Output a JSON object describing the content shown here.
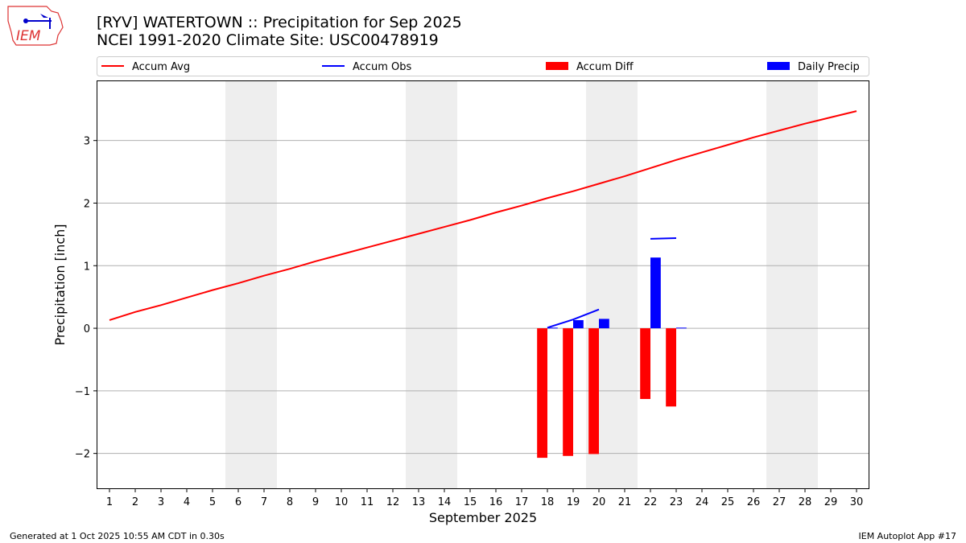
{
  "header": {
    "title_line1": "[RYV] WATERTOWN :: Precipitation for Sep 2025",
    "title_line2": "NCEI 1991-2020 Climate Site: USC00478919",
    "logo_text": "IEM"
  },
  "footer": {
    "generated": "Generated at 1 Oct 2025 10:55 AM CDT in 0.30s",
    "app": "IEM Autoplot App #17"
  },
  "chart_data": {
    "type": "bar",
    "xlabel": "September 2025",
    "ylabel": "Precipitation [inch]",
    "xlim": [
      0.5,
      30.5
    ],
    "ylim": [
      -2.57,
      3.96
    ],
    "x_ticks": [
      1,
      2,
      3,
      4,
      5,
      6,
      7,
      8,
      9,
      10,
      11,
      12,
      13,
      14,
      15,
      16,
      17,
      18,
      19,
      20,
      21,
      22,
      23,
      24,
      25,
      26,
      27,
      28,
      29,
      30
    ],
    "y_ticks": [
      -2,
      -1,
      0,
      1,
      2,
      3
    ],
    "y_tick_labels": [
      "−2",
      "−1",
      "0",
      "1",
      "2",
      "3"
    ],
    "grid": "horizontal",
    "legend_placement": "top",
    "weekend_shading": [
      [
        6,
        7
      ],
      [
        13,
        14
      ],
      [
        20,
        21
      ],
      [
        27,
        28
      ]
    ],
    "colors": {
      "accum_avg": "#ff0000",
      "accum_obs": "#0000ff",
      "accum_diff": "#ff0000",
      "daily_precip": "#0000ff",
      "weekend": "#eeeeee"
    },
    "series": [
      {
        "name": "Accum Avg",
        "kind": "line",
        "x": [
          1,
          2,
          3,
          4,
          5,
          6,
          7,
          8,
          9,
          10,
          11,
          12,
          13,
          14,
          15,
          16,
          17,
          18,
          19,
          20,
          21,
          22,
          23,
          24,
          25,
          26,
          27,
          28,
          29,
          30
        ],
        "values": [
          0.13,
          0.26,
          0.37,
          0.49,
          0.61,
          0.72,
          0.84,
          0.95,
          1.07,
          1.18,
          1.29,
          1.4,
          1.51,
          1.62,
          1.73,
          1.85,
          1.96,
          2.08,
          2.19,
          2.31,
          2.43,
          2.56,
          2.69,
          2.81,
          2.93,
          3.05,
          3.16,
          3.27,
          3.37,
          3.47
        ]
      },
      {
        "name": "Accum Obs",
        "kind": "line",
        "segments": [
          {
            "x": [
              18,
              19,
              20
            ],
            "values": [
              0.01,
              0.14,
              0.3
            ]
          },
          {
            "x": [
              22,
              23
            ],
            "values": [
              1.43,
              1.44
            ]
          }
        ]
      },
      {
        "name": "Accum Diff",
        "kind": "bar",
        "x": [
          18,
          19,
          20,
          22,
          23
        ],
        "values": [
          -2.07,
          -2.04,
          -2.01,
          -1.13,
          -1.25
        ]
      },
      {
        "name": "Daily Precip",
        "kind": "bar",
        "x": [
          18,
          19,
          20,
          22,
          23
        ],
        "values": [
          0.01,
          0.13,
          0.15,
          1.13,
          0.01
        ]
      }
    ]
  }
}
